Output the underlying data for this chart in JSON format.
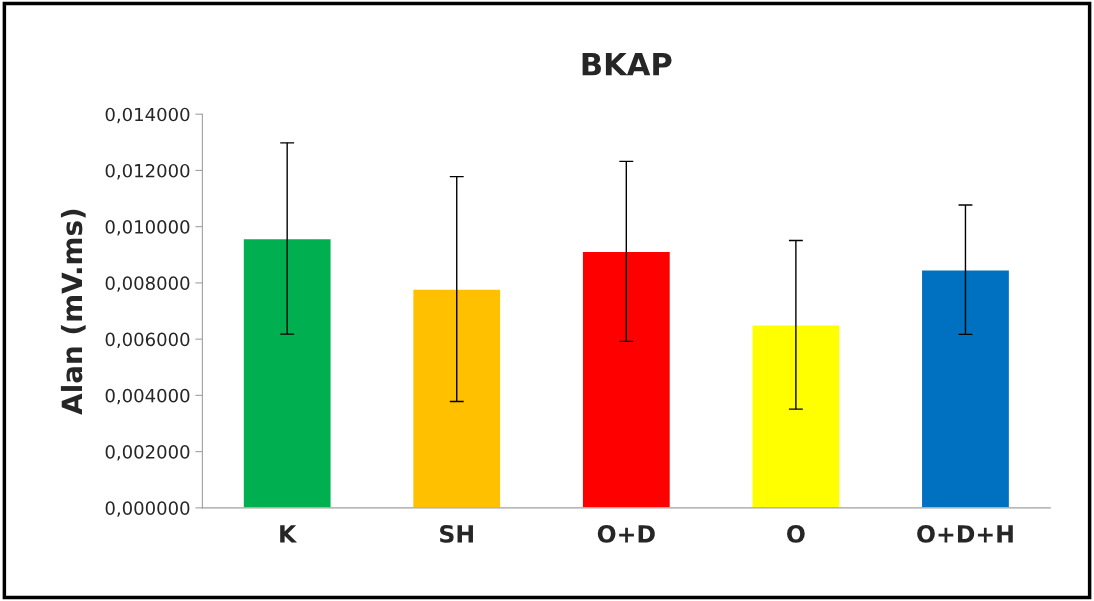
{
  "chart_data": {
    "type": "bar",
    "title": "BKAP",
    "ylabel": "Alan (mV.ms)",
    "categories": [
      "K",
      "SH",
      "O+D",
      "O",
      "O+D+H"
    ],
    "values": [
      0.00958,
      0.00778,
      0.00912,
      0.00651,
      0.00847
    ],
    "errors": [
      0.0034,
      0.004,
      0.0032,
      0.003,
      0.0023
    ],
    "colors": [
      "#00b050",
      "#ffc000",
      "#ff0000",
      "#ffff00",
      "#0070c0"
    ],
    "ylim": [
      0,
      0.014
    ],
    "yticks": [
      {
        "value": 0,
        "label": "0,000000"
      },
      {
        "value": 0.002,
        "label": "0,002000"
      },
      {
        "value": 0.004,
        "label": "0,004000"
      },
      {
        "value": 0.006,
        "label": "0,006000"
      },
      {
        "value": 0.008,
        "label": "0,008000"
      },
      {
        "value": 0.01,
        "label": "0,010000"
      },
      {
        "value": 0.012,
        "label": "0,012000"
      },
      {
        "value": 0.014,
        "label": "0,014000"
      }
    ],
    "grid": false,
    "legend": false
  }
}
